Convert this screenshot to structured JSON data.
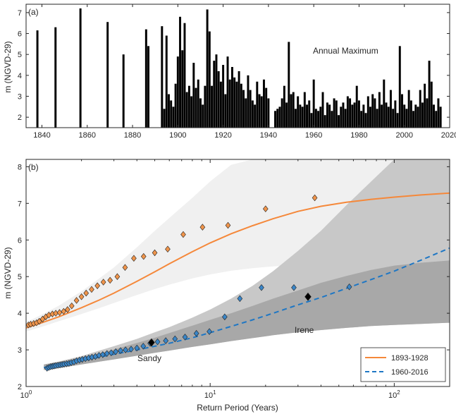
{
  "chart_data": [
    {
      "type": "bar",
      "panel_label": "(a)",
      "ylabel": "m (NGVD-29)",
      "annotation": "Annual Maximum",
      "xlim": [
        1833,
        2020
      ],
      "ylim": [
        1.5,
        7.4
      ],
      "xticks": [
        "1840",
        "1860",
        "1880",
        "1900",
        "1920",
        "1940",
        "1960",
        "1980",
        "2000",
        "2020"
      ],
      "yticks": [
        "2",
        "3",
        "4",
        "5",
        "6",
        "7"
      ],
      "x": [
        1838,
        1846,
        1857,
        1869,
        1876,
        1886,
        1887,
        1893,
        1894,
        1895,
        1896,
        1897,
        1898,
        1899,
        1900,
        1901,
        1902,
        1903,
        1904,
        1905,
        1906,
        1907,
        1908,
        1909,
        1910,
        1911,
        1912,
        1913,
        1914,
        1915,
        1916,
        1917,
        1918,
        1919,
        1920,
        1921,
        1922,
        1923,
        1924,
        1925,
        1926,
        1927,
        1928,
        1929,
        1930,
        1931,
        1932,
        1933,
        1934,
        1935,
        1936,
        1937,
        1938,
        1939,
        1940,
        1943,
        1944,
        1945,
        1946,
        1947,
        1948,
        1949,
        1950,
        1951,
        1952,
        1953,
        1954,
        1955,
        1956,
        1957,
        1958,
        1959,
        1960,
        1961,
        1962,
        1963,
        1964,
        1965,
        1966,
        1967,
        1968,
        1969,
        1970,
        1971,
        1972,
        1973,
        1974,
        1975,
        1976,
        1977,
        1978,
        1979,
        1980,
        1981,
        1982,
        1983,
        1984,
        1985,
        1986,
        1987,
        1988,
        1989,
        1990,
        1991,
        1992,
        1993,
        1994,
        1995,
        1996,
        1997,
        1998,
        1999,
        2000,
        2001,
        2002,
        2003,
        2004,
        2005,
        2006,
        2007,
        2008,
        2009,
        2010,
        2011,
        2012,
        2013,
        2014,
        2015,
        2016
      ],
      "values": [
        6.15,
        6.3,
        7.2,
        6.55,
        5.0,
        6.2,
        5.4,
        6.35,
        2.4,
        5.9,
        3.1,
        2.8,
        2.5,
        3.6,
        4.9,
        6.8,
        5.2,
        6.5,
        3.2,
        3.5,
        3.0,
        4.6,
        3.4,
        3.8,
        2.9,
        2.6,
        3.5,
        7.15,
        6.1,
        3.5,
        4.7,
        5.0,
        4.2,
        3.7,
        4.5,
        3.1,
        4.9,
        3.8,
        4.4,
        3.9,
        3.7,
        4.2,
        3.6,
        3.3,
        2.9,
        4.0,
        3.3,
        2.8,
        2.6,
        3.7,
        3.1,
        3.0,
        3.8,
        3.4,
        2.9,
        2.3,
        2.4,
        2.5,
        2.9,
        3.5,
        2.7,
        5.6,
        3.1,
        3.2,
        2.4,
        3.0,
        2.6,
        2.5,
        3.2,
        2.6,
        2.8,
        2.2,
        3.8,
        2.4,
        2.3,
        2.5,
        3.2,
        2.1,
        2.7,
        2.6,
        2.3,
        2.9,
        2.8,
        2.1,
        2.5,
        2.7,
        2.4,
        3.0,
        2.9,
        2.6,
        2.7,
        3.5,
        2.8,
        2.3,
        2.6,
        2.2,
        3.0,
        2.5,
        3.1,
        2.9,
        2.4,
        3.2,
        2.6,
        3.8,
        2.7,
        2.5,
        3.3,
        2.4,
        2.8,
        2.2,
        5.4,
        3.1,
        2.6,
        2.4,
        3.3,
        2.8,
        2.3,
        2.6,
        2.5,
        3.3,
        2.7,
        3.6,
        2.9,
        4.7,
        3.7,
        2.6,
        2.3,
        2.9,
        2.5
      ],
      "bar_color": "#000000"
    },
    {
      "type": "scatter",
      "panel_label": "(b)",
      "xlabel": "Return Period (Years)",
      "ylabel": "m (NGVD-29)",
      "xscale": "log",
      "xlim": [
        1,
        200
      ],
      "ylim": [
        2,
        8.2
      ],
      "yticks": [
        "2",
        "3",
        "4",
        "5",
        "6",
        "7",
        "8"
      ],
      "xticks": [
        {
          "value": 1,
          "base": "10",
          "exp": "0"
        },
        {
          "value": 10,
          "base": "10",
          "exp": "1"
        },
        {
          "value": 100,
          "base": "10",
          "exp": "2"
        }
      ],
      "legend_position": "bottom-right",
      "series": [
        {
          "name": "1893-1928",
          "color": "#f5883a",
          "marker_color": "#f0944a",
          "line_style": "solid",
          "fit_x": [
            1,
            1.2,
            1.5,
            2,
            2.5,
            3,
            4,
            5,
            6,
            8,
            10,
            13,
            17,
            22,
            30,
            40,
            55,
            75,
            100,
            140,
            200
          ],
          "fit_y": [
            3.6,
            3.73,
            3.9,
            4.15,
            4.36,
            4.55,
            4.87,
            5.13,
            5.35,
            5.68,
            5.92,
            6.17,
            6.39,
            6.58,
            6.78,
            6.92,
            7.03,
            7.11,
            7.17,
            7.23,
            7.28
          ],
          "ci_x": [
            1,
            1.2,
            1.5,
            2,
            2.5,
            3,
            4,
            5,
            6,
            8,
            10,
            13,
            17,
            22,
            28,
            35,
            50,
            75,
            100,
            140,
            200
          ],
          "ci_lower": [
            3.5,
            3.62,
            3.78,
            3.98,
            4.14,
            4.28,
            4.5,
            4.66,
            4.78,
            4.95,
            5.06,
            5.16,
            5.23,
            5.28,
            5.31,
            5.33,
            5.35,
            5.36,
            5.37,
            5.37,
            5.38
          ],
          "ci_upper": [
            3.75,
            3.95,
            4.2,
            4.6,
            4.95,
            5.25,
            5.8,
            6.25,
            6.6,
            7.15,
            7.6,
            8.05,
            8.2,
            8.2,
            8.2,
            8.2,
            8.2,
            8.2,
            8.2,
            8.2,
            8.2
          ],
          "points_x": [
            1.03,
            1.06,
            1.1,
            1.14,
            1.18,
            1.23,
            1.28,
            1.33,
            1.39,
            1.45,
            1.52,
            1.6,
            1.68,
            1.77,
            1.88,
            2.0,
            2.12,
            2.27,
            2.44,
            2.63,
            2.86,
            3.13,
            3.45,
            3.85,
            4.35,
            5.0,
            5.88,
            7.14,
            9.09,
            12.5,
            20.0,
            37.0
          ],
          "points_y": [
            3.68,
            3.7,
            3.72,
            3.74,
            3.78,
            3.84,
            3.9,
            3.95,
            3.98,
            4.0,
            4.02,
            4.05,
            4.1,
            4.2,
            4.35,
            4.45,
            4.55,
            4.65,
            4.75,
            4.85,
            4.9,
            5.0,
            5.25,
            5.5,
            5.55,
            5.65,
            5.75,
            6.15,
            6.35,
            6.4,
            6.85,
            7.15
          ]
        },
        {
          "name": "1960-2016",
          "color": "#1f77c4",
          "marker_color": "#3a86c8",
          "line_style": "dashed",
          "fit_x": [
            1.25,
            1.5,
            2,
            2.5,
            3,
            4,
            5,
            6,
            8,
            10,
            13,
            17,
            22,
            30,
            40,
            55,
            75,
            100,
            140,
            200
          ],
          "fit_y": [
            2.52,
            2.58,
            2.7,
            2.8,
            2.88,
            3.0,
            3.1,
            3.18,
            3.33,
            3.47,
            3.64,
            3.82,
            4.0,
            4.23,
            4.43,
            4.68,
            4.92,
            5.15,
            5.45,
            5.78
          ],
          "ci_x": [
            1.25,
            1.5,
            2,
            2.5,
            3,
            4,
            5,
            6,
            8,
            10,
            13,
            17,
            22,
            30,
            40,
            55,
            75,
            100,
            140,
            200
          ],
          "ci_lower": [
            2.45,
            2.5,
            2.6,
            2.68,
            2.74,
            2.84,
            2.92,
            2.98,
            3.08,
            3.15,
            3.24,
            3.32,
            3.4,
            3.48,
            3.54,
            3.6,
            3.65,
            3.68,
            3.71,
            3.74
          ],
          "ci_upper": [
            2.6,
            2.68,
            2.83,
            2.98,
            3.1,
            3.3,
            3.48,
            3.62,
            3.88,
            4.1,
            4.4,
            4.75,
            5.15,
            5.7,
            6.25,
            6.95,
            7.6,
            8.2,
            8.2,
            8.2
          ],
          "ci_upper2": [
            2.6,
            2.67,
            2.8,
            2.91,
            3.01,
            3.19,
            3.33,
            3.46,
            3.66,
            3.82,
            4.0,
            4.2,
            4.4,
            4.62,
            4.83,
            5.02,
            5.18,
            5.3,
            5.38,
            5.44
          ],
          "points_x": [
            1.3,
            1.33,
            1.36,
            1.39,
            1.42,
            1.45,
            1.49,
            1.53,
            1.57,
            1.61,
            1.66,
            1.71,
            1.76,
            1.82,
            1.88,
            1.95,
            2.02,
            2.1,
            2.19,
            2.28,
            2.38,
            2.49,
            2.61,
            2.75,
            2.9,
            3.07,
            3.26,
            3.47,
            3.72,
            4.0,
            4.33,
            4.72,
            5.18,
            5.74,
            6.44,
            7.3,
            8.42,
            9.9,
            12.0,
            14.5,
            19.0,
            28.5,
            57.0
          ],
          "points_y": [
            2.5,
            2.52,
            2.54,
            2.55,
            2.56,
            2.57,
            2.58,
            2.59,
            2.6,
            2.61,
            2.62,
            2.63,
            2.65,
            2.67,
            2.7,
            2.72,
            2.74,
            2.76,
            2.78,
            2.8,
            2.82,
            2.85,
            2.87,
            2.9,
            2.92,
            2.95,
            2.98,
            3.0,
            3.02,
            3.05,
            3.1,
            3.18,
            3.22,
            3.25,
            3.3,
            3.35,
            3.45,
            3.5,
            3.9,
            4.4,
            4.7,
            4.7,
            4.72
          ],
          "highlighted": [
            {
              "label": "Sandy",
              "x": 4.8,
              "y": 3.2
            },
            {
              "label": "Irene",
              "x": 34.0,
              "y": 4.45
            }
          ]
        }
      ]
    }
  ]
}
